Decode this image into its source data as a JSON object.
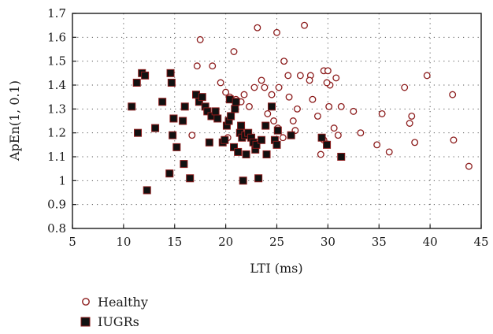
{
  "chart_data": {
    "type": "scatter",
    "xlabel": "LTI (ms)",
    "ylabel": "ApEn(1, 0.1)",
    "xlim": [
      5,
      45
    ],
    "ylim": [
      0.8,
      1.7
    ],
    "xticks": [
      "5",
      "10",
      "15",
      "20",
      "25",
      "30",
      "35",
      "40",
      "45"
    ],
    "yticks": [
      "0.8",
      "0.9",
      "1",
      "1.1",
      "1.2",
      "1.3",
      "1.4",
      "1.5",
      "1.6",
      "1.7"
    ],
    "grid": "dotted",
    "legend_position": "bottom-left",
    "colors": {
      "healthy": "#8b1a1a",
      "iugr_fill": "#111111",
      "iugr_edge": "#8b1a1a",
      "axis": "#1a1a1a",
      "grid": "#555555"
    },
    "series": [
      {
        "name": "Healthy",
        "marker": "open-circle",
        "points": [
          [
            17.5,
            1.59
          ],
          [
            20.8,
            1.54
          ],
          [
            23.1,
            1.64
          ],
          [
            25.0,
            1.62
          ],
          [
            27.7,
            1.65
          ],
          [
            17.2,
            1.48
          ],
          [
            18.7,
            1.48
          ],
          [
            19.5,
            1.41
          ],
          [
            22.8,
            1.39
          ],
          [
            23.5,
            1.42
          ],
          [
            24.5,
            1.36
          ],
          [
            25.2,
            1.39
          ],
          [
            25.7,
            1.5
          ],
          [
            26.1,
            1.44
          ],
          [
            27.3,
            1.44
          ],
          [
            28.3,
            1.44
          ],
          [
            29.6,
            1.46
          ],
          [
            30.0,
            1.46
          ],
          [
            30.2,
            1.4
          ],
          [
            30.8,
            1.43
          ],
          [
            31.3,
            1.31
          ],
          [
            32.5,
            1.29
          ],
          [
            33.2,
            1.2
          ],
          [
            34.8,
            1.15
          ],
          [
            35.3,
            1.28
          ],
          [
            36.0,
            1.12
          ],
          [
            37.5,
            1.39
          ],
          [
            38.0,
            1.24
          ],
          [
            38.2,
            1.27
          ],
          [
            38.5,
            1.16
          ],
          [
            39.7,
            1.44
          ],
          [
            42.2,
            1.36
          ],
          [
            42.3,
            1.17
          ],
          [
            43.8,
            1.06
          ],
          [
            16.7,
            1.19
          ],
          [
            20.0,
            1.37
          ],
          [
            20.4,
            1.35
          ],
          [
            21.0,
            1.34
          ],
          [
            21.5,
            1.33
          ],
          [
            21.8,
            1.36
          ],
          [
            22.3,
            1.31
          ],
          [
            23.8,
            1.39
          ],
          [
            24.1,
            1.28
          ],
          [
            25.1,
            1.22
          ],
          [
            25.6,
            1.18
          ],
          [
            26.2,
            1.35
          ],
          [
            26.6,
            1.25
          ],
          [
            26.8,
            1.21
          ],
          [
            28.5,
            1.34
          ],
          [
            29.0,
            1.27
          ],
          [
            29.3,
            1.11
          ],
          [
            29.6,
            1.17
          ],
          [
            30.1,
            1.31
          ],
          [
            30.6,
            1.22
          ],
          [
            31.0,
            1.19
          ],
          [
            24.7,
            1.25
          ],
          [
            23.0,
            1.16
          ],
          [
            20.2,
            1.18
          ],
          [
            21.9,
            1.19
          ],
          [
            27.0,
            1.3
          ],
          [
            29.9,
            1.41
          ],
          [
            28.2,
            1.42
          ]
        ]
      },
      {
        "name": "IUGRs",
        "marker": "filled-square",
        "points": [
          [
            11.8,
            1.45
          ],
          [
            12.1,
            1.44
          ],
          [
            11.3,
            1.41
          ],
          [
            10.8,
            1.31
          ],
          [
            11.4,
            1.2
          ],
          [
            12.3,
            0.96
          ],
          [
            13.1,
            1.22
          ],
          [
            13.8,
            1.33
          ],
          [
            14.6,
            1.45
          ],
          [
            14.7,
            1.41
          ],
          [
            14.9,
            1.26
          ],
          [
            14.8,
            1.19
          ],
          [
            15.2,
            1.14
          ],
          [
            14.5,
            1.03
          ],
          [
            15.8,
            1.25
          ],
          [
            16.0,
            1.31
          ],
          [
            15.9,
            1.07
          ],
          [
            16.5,
            1.01
          ],
          [
            17.1,
            1.36
          ],
          [
            17.4,
            1.33
          ],
          [
            17.7,
            1.35
          ],
          [
            18.0,
            1.31
          ],
          [
            18.2,
            1.29
          ],
          [
            18.4,
            1.16
          ],
          [
            18.6,
            1.27
          ],
          [
            19.0,
            1.29
          ],
          [
            19.2,
            1.26
          ],
          [
            19.7,
            1.16
          ],
          [
            19.9,
            1.17
          ],
          [
            20.1,
            1.23
          ],
          [
            20.3,
            1.25
          ],
          [
            20.4,
            1.34
          ],
          [
            20.5,
            1.27
          ],
          [
            20.8,
            1.14
          ],
          [
            20.9,
            1.3
          ],
          [
            21.0,
            1.33
          ],
          [
            21.2,
            1.12
          ],
          [
            21.4,
            1.2
          ],
          [
            21.6,
            1.18
          ],
          [
            21.7,
            1.0
          ],
          [
            21.9,
            1.19
          ],
          [
            22.0,
            1.11
          ],
          [
            22.2,
            1.2
          ],
          [
            22.5,
            1.18
          ],
          [
            22.7,
            1.16
          ],
          [
            22.9,
            1.13
          ],
          [
            23.0,
            1.15
          ],
          [
            23.2,
            1.01
          ],
          [
            23.5,
            1.17
          ],
          [
            23.9,
            1.23
          ],
          [
            24.0,
            1.11
          ],
          [
            24.5,
            1.31
          ],
          [
            24.8,
            1.17
          ],
          [
            25.0,
            1.15
          ],
          [
            25.1,
            1.21
          ],
          [
            26.4,
            1.19
          ],
          [
            29.4,
            1.18
          ],
          [
            29.9,
            1.15
          ],
          [
            31.3,
            1.1
          ],
          [
            21.5,
            1.23
          ]
        ]
      }
    ]
  }
}
